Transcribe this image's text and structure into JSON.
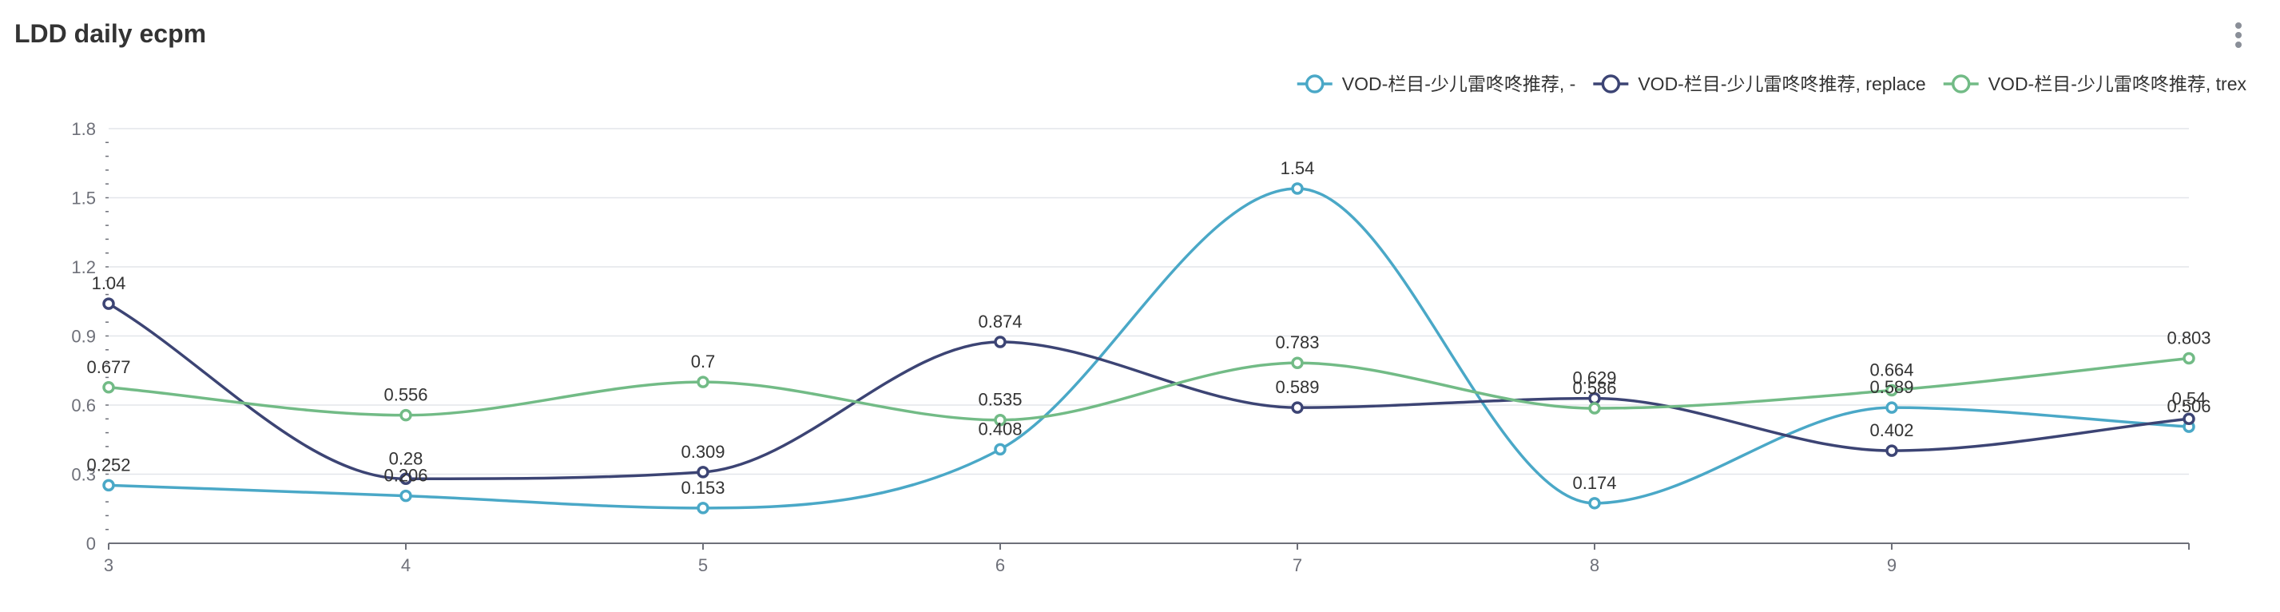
{
  "header": {
    "title": "LDD daily ecpm"
  },
  "menu_icon": "more-vertical-icon",
  "colors": {
    "grid": "#e3e6ea",
    "axis": "#6e7079",
    "text": "#333333",
    "menu": "#8a8f98"
  },
  "chart_data": {
    "type": "line",
    "title": "LDD daily ecpm",
    "xlabel": "",
    "ylabel": "",
    "x": [
      3,
      4,
      5,
      6,
      7,
      8,
      9,
      10
    ],
    "xticks": [
      "3",
      "4",
      "5",
      "6",
      "7",
      "8",
      "9"
    ],
    "xlim": [
      3,
      10
    ],
    "ylim": [
      0,
      1.8
    ],
    "yticks": [
      "0",
      "0.3",
      "0.6",
      "0.9",
      "1.2",
      "1.5",
      "1.8"
    ],
    "grid": true,
    "smooth": true,
    "legend_position": "top-right",
    "series": [
      {
        "name": "VOD-栏目-少儿雷咚咚推荐, -",
        "color": "#4aa8c7",
        "values": [
          0.252,
          0.206,
          0.153,
          0.408,
          1.54,
          0.174,
          0.589,
          0.506
        ],
        "labels": [
          "0.252",
          "0.206",
          "0.153",
          "0.408",
          "1.54",
          "0.174",
          "0.589",
          "0.506"
        ]
      },
      {
        "name": "VOD-栏目-少儿雷咚咚推荐, replace",
        "color": "#3c4474",
        "values": [
          1.04,
          0.28,
          0.309,
          0.874,
          0.589,
          0.629,
          0.402,
          0.54
        ],
        "labels": [
          "1.04",
          "0.28",
          "0.309",
          "0.874",
          "0.589",
          "0.629",
          "0.402",
          "0.54"
        ]
      },
      {
        "name": "VOD-栏目-少儿雷咚咚推荐, trex",
        "color": "#72bb86",
        "values": [
          0.677,
          0.556,
          0.7,
          0.535,
          0.783,
          0.586,
          0.664,
          0.803
        ],
        "labels": [
          "0.677",
          "0.556",
          "0.7",
          "0.535",
          "0.783",
          "0.586",
          "0.664",
          "0.803"
        ]
      }
    ]
  }
}
